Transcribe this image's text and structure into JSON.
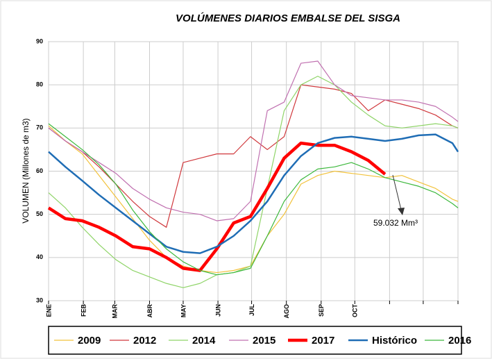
{
  "chart_data": {
    "type": "line",
    "title": "VOLÚMENES DIARIOS EMBALSE DEL SISGA",
    "y_label": "VOLUMEN (Millones de m3)",
    "annotation": "59.032 Mm³",
    "x": [
      0,
      15,
      30,
      45,
      60,
      75,
      90,
      105,
      120,
      135,
      150,
      165,
      180,
      195,
      210,
      225,
      240,
      255,
      270,
      285,
      300,
      315,
      330,
      345,
      360,
      365
    ],
    "xlim": [
      0,
      365
    ],
    "xticks": [
      {
        "value": 0,
        "label": "ENE"
      },
      {
        "value": 31,
        "label": "FEB"
      },
      {
        "value": 59,
        "label": "MAR"
      },
      {
        "value": 90,
        "label": "ABR"
      },
      {
        "value": 120,
        "label": "MAY"
      },
      {
        "value": 151,
        "label": "JUN"
      },
      {
        "value": 181,
        "label": "JUL"
      },
      {
        "value": 212,
        "label": "AGO"
      },
      {
        "value": 243,
        "label": "SEP"
      },
      {
        "value": 273,
        "label": "OCT"
      },
      {
        "value": 304,
        "label": null
      },
      {
        "value": 334,
        "label": null
      },
      {
        "value": 365,
        "label": null
      }
    ],
    "ylim": [
      30,
      90
    ],
    "yticks": [
      30,
      40,
      50,
      60,
      70,
      80,
      90
    ],
    "grid": true,
    "series": [
      {
        "name": "2009",
        "color": "#f2c23c",
        "line_width": 1.2,
        "values": [
          70.5,
          67,
          64,
          59,
          54,
          49,
          44,
          40,
          38,
          37,
          36.5,
          37,
          38,
          45,
          50,
          57,
          59,
          60,
          59.5,
          59,
          58.5,
          59,
          57.5,
          56,
          53.5,
          53
        ]
      },
      {
        "name": "2012",
        "color": "#d0383c",
        "line_width": 1.2,
        "values": [
          70,
          67,
          64.5,
          61,
          57,
          53,
          49.5,
          47,
          62,
          63,
          64,
          64,
          68,
          65,
          68,
          80,
          79.5,
          79,
          78,
          74,
          76.5,
          75.5,
          74.5,
          73,
          70.5,
          70
        ]
      },
      {
        "name": "2014",
        "color": "#8fd468",
        "line_width": 1.2,
        "values": [
          55,
          51.5,
          47,
          43,
          39.5,
          37,
          35.5,
          34,
          33,
          34,
          36,
          36.5,
          38,
          56,
          74,
          80,
          82,
          80,
          76,
          73,
          70.5,
          70,
          70.5,
          71,
          70.5,
          70
        ]
      },
      {
        "name": "2015",
        "color": "#c070b0",
        "line_width": 1.2,
        "values": [
          70,
          67,
          64.5,
          62,
          59.5,
          56,
          53.5,
          51.5,
          50.5,
          50,
          48.5,
          49,
          53,
          74,
          76,
          85,
          85.5,
          80,
          77.5,
          77,
          76.5,
          76.5,
          76,
          75,
          72.5,
          71.5
        ]
      },
      {
        "name": "2017",
        "color": "#ff0000",
        "line_width": 4.5,
        "values": [
          51.5,
          49,
          48.5,
          47,
          45,
          42.5,
          42,
          40,
          37.5,
          37,
          42,
          48,
          49.5,
          56,
          63,
          66.5,
          66,
          66,
          64.5,
          62.5,
          59.3,
          null,
          null,
          null,
          null,
          null
        ]
      },
      {
        "name": "Histórico",
        "color": "#1f6db5",
        "line_width": 2.5,
        "values": [
          64.5,
          61,
          57.8,
          54.5,
          51.5,
          48.5,
          45.5,
          42.5,
          41.3,
          41,
          42.5,
          45,
          48.5,
          53,
          59,
          63.5,
          66.5,
          67.7,
          68,
          67.5,
          67,
          67.5,
          68.3,
          68.5,
          66.5,
          64.5
        ]
      },
      {
        "name": "2016",
        "color": "#3cb83c",
        "line_width": 1.2,
        "values": [
          71,
          68,
          65,
          61.5,
          57,
          51,
          46,
          42,
          39,
          37,
          36,
          36.5,
          37.5,
          45,
          53,
          58,
          60.5,
          61,
          62,
          60.5,
          58.5,
          57.5,
          56.5,
          55,
          52.5,
          51.5
        ]
      }
    ]
  }
}
